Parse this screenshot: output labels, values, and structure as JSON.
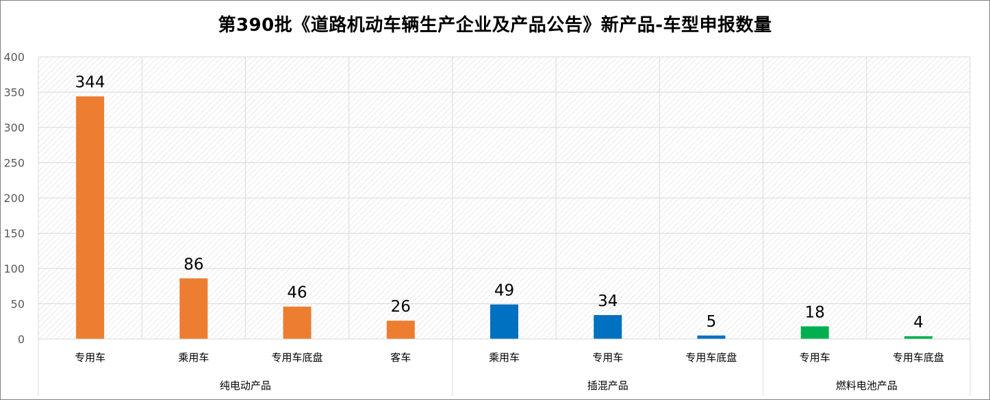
{
  "chart_data": {
    "type": "bar",
    "title": "第390批《道路机动车辆生产企业及产品公告》新产品-车型申报数量",
    "ylim": [
      0,
      400
    ],
    "yticks": [
      0,
      50,
      100,
      150,
      200,
      250,
      300,
      350,
      400
    ],
    "grid": true,
    "groups": [
      {
        "name": "纯电动产品",
        "color": "#ED7D31",
        "categories": [
          "专用车",
          "乘用车",
          "专用车底盘",
          "客车"
        ],
        "values": [
          344,
          86,
          46,
          26
        ]
      },
      {
        "name": "插混产品",
        "color": "#0070C0",
        "categories": [
          "乘用车",
          "专用车",
          "专用车底盘"
        ],
        "values": [
          49,
          34,
          5
        ]
      },
      {
        "name": "燃料电池产品",
        "color": "#00B050",
        "categories": [
          "专用车",
          "专用车底盘"
        ],
        "values": [
          18,
          4
        ]
      }
    ]
  }
}
